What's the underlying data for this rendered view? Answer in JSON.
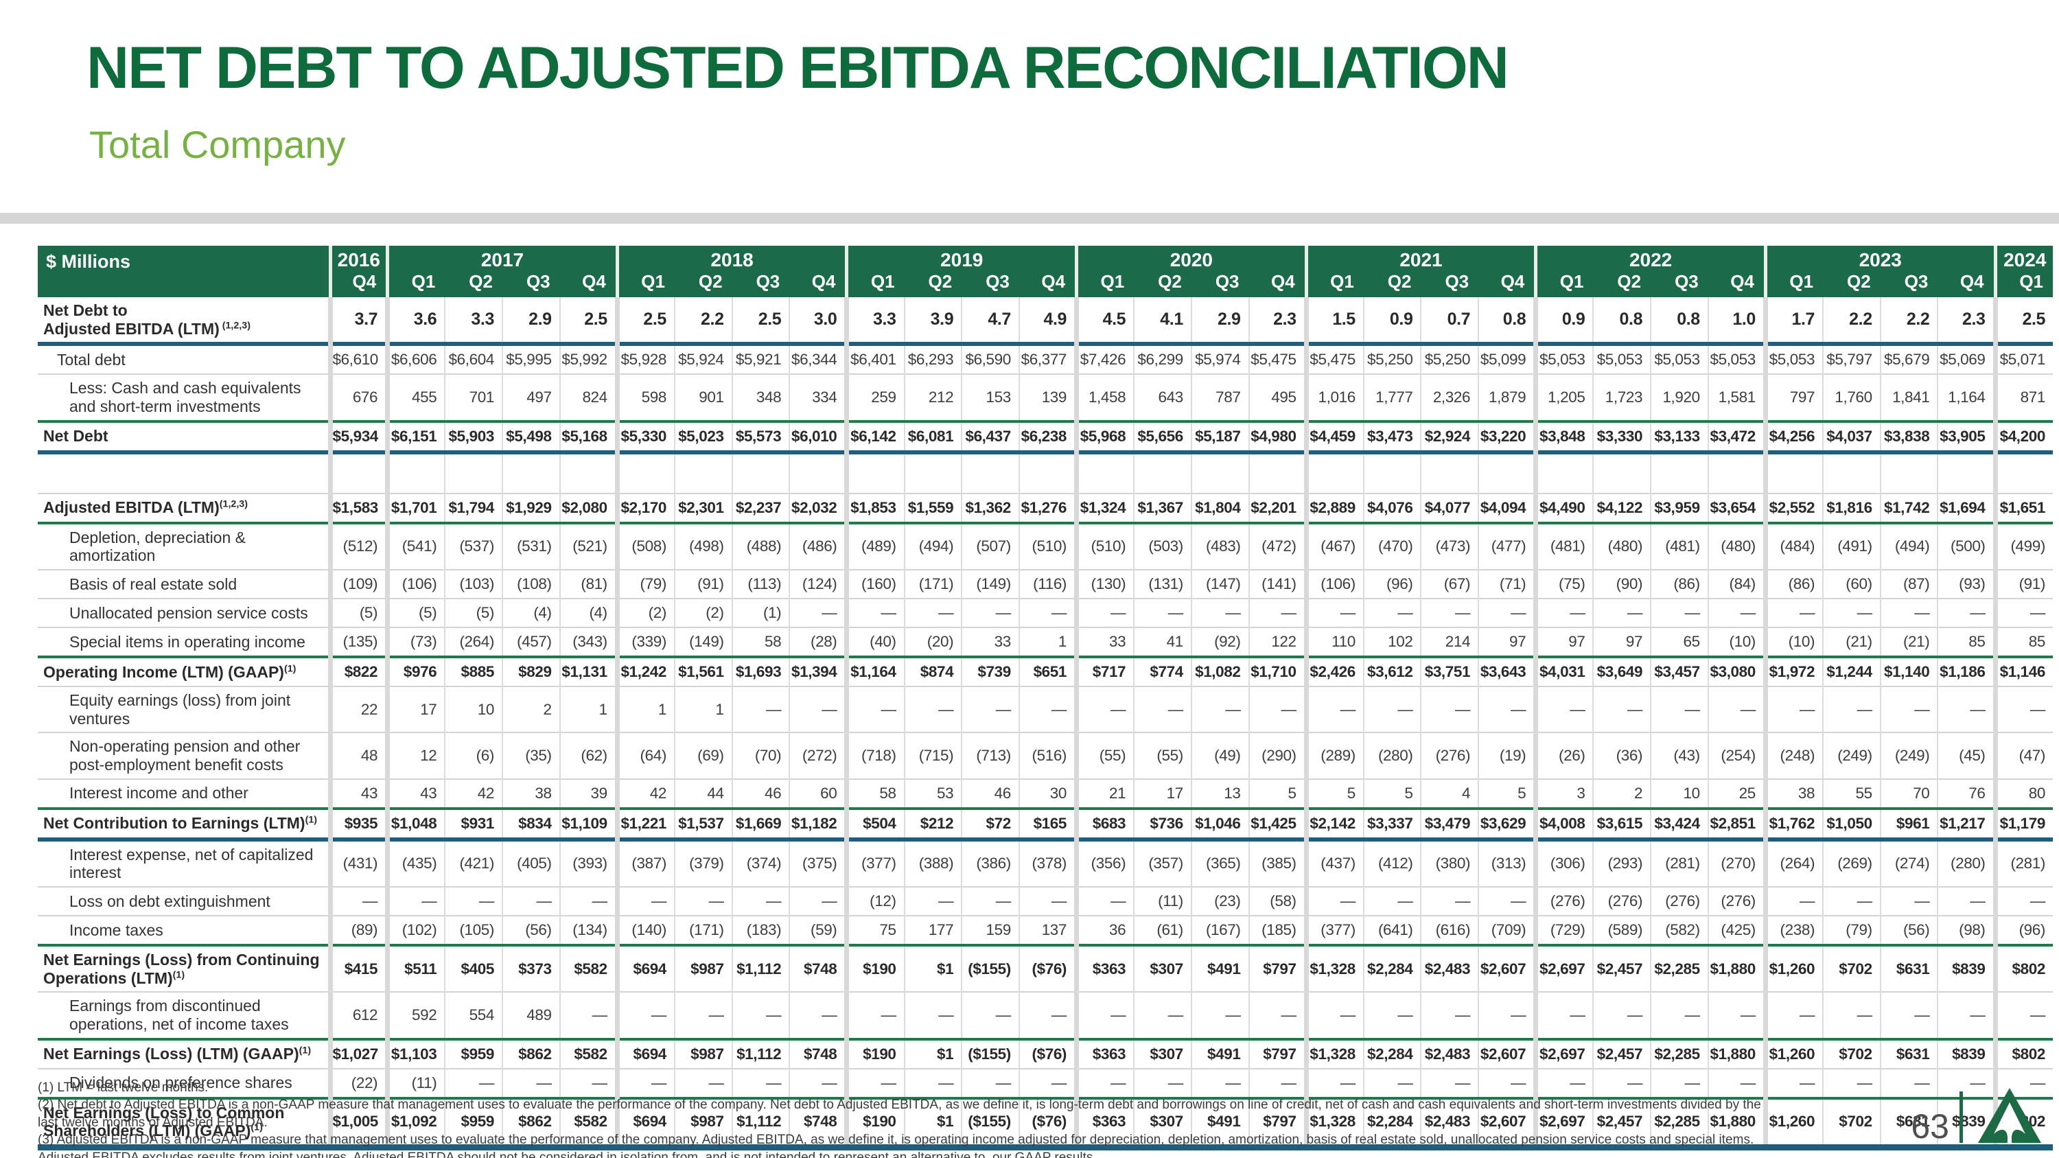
{
  "header": {
    "title": "NET DEBT TO ADJUSTED EBITDA RECONCILIATION",
    "subtitle": "Total Company"
  },
  "colors": {
    "brand_green_dark": "#0e6b3b",
    "brand_green_light": "#77b144",
    "header_green": "#1b6a4a",
    "rule_green": "#1e7a4b",
    "rule_blue": "#205e7d",
    "logo_green": "#1d6b45"
  },
  "table": {
    "unit_label": "$ Millions",
    "year_groups": [
      {
        "label": "2016",
        "quarters": [
          "Q4"
        ]
      },
      {
        "label": "2017",
        "quarters": [
          "Q1",
          "Q2",
          "Q3",
          "Q4"
        ]
      },
      {
        "label": "2018",
        "quarters": [
          "Q1",
          "Q2",
          "Q3",
          "Q4"
        ]
      },
      {
        "label": "2019",
        "quarters": [
          "Q1",
          "Q2",
          "Q3",
          "Q4"
        ]
      },
      {
        "label": "2020",
        "quarters": [
          "Q1",
          "Q2",
          "Q3",
          "Q4"
        ]
      },
      {
        "label": "2021",
        "quarters": [
          "Q1",
          "Q2",
          "Q3",
          "Q4"
        ]
      },
      {
        "label": "2022",
        "quarters": [
          "Q1",
          "Q2",
          "Q3",
          "Q4"
        ]
      },
      {
        "label": "2023",
        "quarters": [
          "Q1",
          "Q2",
          "Q3",
          "Q4"
        ]
      },
      {
        "label": "2024",
        "quarters": [
          "Q1"
        ]
      }
    ],
    "rows": [
      {
        "name": "row-net-debt-to-adjusted-ebitda",
        "label": "Net Debt to\nAdjusted EBITDA (LTM)",
        "sup": " (1,2,3)",
        "bold": true,
        "ratio": true,
        "rule": "blue",
        "values": [
          "3.7",
          "3.6",
          "3.3",
          "2.9",
          "2.5",
          "2.5",
          "2.2",
          "2.5",
          "3.0",
          "3.3",
          "3.9",
          "4.7",
          "4.9",
          "4.5",
          "4.1",
          "2.9",
          "2.3",
          "1.5",
          "0.9",
          "0.7",
          "0.8",
          "0.9",
          "0.8",
          "0.8",
          "1.0",
          "1.7",
          "2.2",
          "2.2",
          "2.3",
          "2.5"
        ]
      },
      {
        "name": "row-total-debt",
        "label": "Total debt",
        "indent": 1,
        "rule": "thin",
        "values": [
          "$6,610",
          "$6,606",
          "$6,604",
          "$5,995",
          "$5,992",
          "$5,928",
          "$5,924",
          "$5,921",
          "$6,344",
          "$6,401",
          "$6,293",
          "$6,590",
          "$6,377",
          "$7,426",
          "$6,299",
          "$5,974",
          "$5,475",
          "$5,475",
          "$5,250",
          "$5,250",
          "$5,099",
          "$5,053",
          "$5,053",
          "$5,053",
          "$5,053",
          "$5,053",
          "$5,797",
          "$5,679",
          "$5,069",
          "$5,071"
        ]
      },
      {
        "name": "row-less-cash",
        "label": "Less: Cash and cash equivalents\nand short-term investments",
        "indent": 2,
        "rule": "green",
        "values": [
          "676",
          "455",
          "701",
          "497",
          "824",
          "598",
          "901",
          "348",
          "334",
          "259",
          "212",
          "153",
          "139",
          "1,458",
          "643",
          "787",
          "495",
          "1,016",
          "1,777",
          "2,326",
          "1,879",
          "1,205",
          "1,723",
          "1,920",
          "1,581",
          "797",
          "1,760",
          "1,841",
          "1,164",
          "871"
        ]
      },
      {
        "name": "row-net-debt",
        "label": "Net Debt",
        "bold": true,
        "rule": "blue",
        "values": [
          "$5,934",
          "$6,151",
          "$5,903",
          "$5,498",
          "$5,168",
          "$5,330",
          "$5,023",
          "$5,573",
          "$6,010",
          "$6,142",
          "$6,081",
          "$6,437",
          "$6,238",
          "$5,968",
          "$5,656",
          "$5,187",
          "$4,980",
          "$4,459",
          "$3,473",
          "$2,924",
          "$3,220",
          "$3,848",
          "$3,330",
          "$3,133",
          "$3,472",
          "$4,256",
          "$4,037",
          "$3,838",
          "$3,905",
          "$4,200"
        ]
      },
      {
        "name": "row-spacer",
        "type": "spacer",
        "rule": "thin"
      },
      {
        "name": "row-adjusted-ebitda",
        "label": "Adjusted EBITDA (LTM)",
        "sup": "(1,2,3)",
        "bold": true,
        "rule": "green",
        "values": [
          "$1,583",
          "$1,701",
          "$1,794",
          "$1,929",
          "$2,080",
          "$2,170",
          "$2,301",
          "$2,237",
          "$2,032",
          "$1,853",
          "$1,559",
          "$1,362",
          "$1,276",
          "$1,324",
          "$1,367",
          "$1,804",
          "$2,201",
          "$2,889",
          "$4,076",
          "$4,077",
          "$4,094",
          "$4,490",
          "$4,122",
          "$3,959",
          "$3,654",
          "$2,552",
          "$1,816",
          "$1,742",
          "$1,694",
          "$1,651"
        ]
      },
      {
        "name": "row-depletion-depreciation-amortization",
        "label": "Depletion, depreciation &\namortization",
        "indent": 2,
        "rule": "thin",
        "values": [
          "(512)",
          "(541)",
          "(537)",
          "(531)",
          "(521)",
          "(508)",
          "(498)",
          "(488)",
          "(486)",
          "(489)",
          "(494)",
          "(507)",
          "(510)",
          "(510)",
          "(503)",
          "(483)",
          "(472)",
          "(467)",
          "(470)",
          "(473)",
          "(477)",
          "(481)",
          "(480)",
          "(481)",
          "(480)",
          "(484)",
          "(491)",
          "(494)",
          "(500)",
          "(499)"
        ]
      },
      {
        "name": "row-basis-of-real-estate-sold",
        "label": "Basis of real estate sold",
        "indent": 2,
        "rule": "thin",
        "values": [
          "(109)",
          "(106)",
          "(103)",
          "(108)",
          "(81)",
          "(79)",
          "(91)",
          "(113)",
          "(124)",
          "(160)",
          "(171)",
          "(149)",
          "(116)",
          "(130)",
          "(131)",
          "(147)",
          "(141)",
          "(106)",
          "(96)",
          "(67)",
          "(71)",
          "(75)",
          "(90)",
          "(86)",
          "(84)",
          "(86)",
          "(60)",
          "(87)",
          "(93)",
          "(91)"
        ]
      },
      {
        "name": "row-unallocated-pension-service-costs",
        "label": "Unallocated pension service costs",
        "indent": 2,
        "rule": "thin",
        "values": [
          "(5)",
          "(5)",
          "(5)",
          "(4)",
          "(4)",
          "(2)",
          "(2)",
          "(1)",
          "—",
          "—",
          "—",
          "—",
          "—",
          "—",
          "—",
          "—",
          "—",
          "—",
          "—",
          "—",
          "—",
          "—",
          "—",
          "—",
          "—",
          "—",
          "—",
          "—",
          "—",
          "—"
        ]
      },
      {
        "name": "row-special-items-in-operating-income",
        "label": "Special items in operating income",
        "indent": 2,
        "rule": "green",
        "values": [
          "(135)",
          "(73)",
          "(264)",
          "(457)",
          "(343)",
          "(339)",
          "(149)",
          "58",
          "(28)",
          "(40)",
          "(20)",
          "33",
          "1",
          "33",
          "41",
          "(92)",
          "122",
          "110",
          "102",
          "214",
          "97",
          "97",
          "97",
          "65",
          "(10)",
          "(10)",
          "(21)",
          "(21)",
          "85",
          "85"
        ]
      },
      {
        "name": "row-operating-income",
        "label": "Operating Income (LTM) (GAAP)",
        "sup": "(1)",
        "bold": true,
        "rule": "thin",
        "values": [
          "$822",
          "$976",
          "$885",
          "$829",
          "$1,131",
          "$1,242",
          "$1,561",
          "$1,693",
          "$1,394",
          "$1,164",
          "$874",
          "$739",
          "$651",
          "$717",
          "$774",
          "$1,082",
          "$1,710",
          "$2,426",
          "$3,612",
          "$3,751",
          "$3,643",
          "$4,031",
          "$3,649",
          "$3,457",
          "$3,080",
          "$1,972",
          "$1,244",
          "$1,140",
          "$1,186",
          "$1,146"
        ]
      },
      {
        "name": "row-equity-earnings-joint-ventures",
        "label": "Equity earnings (loss) from joint\nventures",
        "indent": 2,
        "rule": "thin",
        "values": [
          "22",
          "17",
          "10",
          "2",
          "1",
          "1",
          "1",
          "—",
          "—",
          "—",
          "—",
          "—",
          "—",
          "—",
          "—",
          "—",
          "—",
          "—",
          "—",
          "—",
          "—",
          "—",
          "—",
          "—",
          "—",
          "—",
          "—",
          "—",
          "—",
          "—"
        ]
      },
      {
        "name": "row-non-operating-pension",
        "label": "Non-operating pension and other\npost-employment benefit costs",
        "indent": 2,
        "rule": "thin",
        "values": [
          "48",
          "12",
          "(6)",
          "(35)",
          "(62)",
          "(64)",
          "(69)",
          "(70)",
          "(272)",
          "(718)",
          "(715)",
          "(713)",
          "(516)",
          "(55)",
          "(55)",
          "(49)",
          "(290)",
          "(289)",
          "(280)",
          "(276)",
          "(19)",
          "(26)",
          "(36)",
          "(43)",
          "(254)",
          "(248)",
          "(249)",
          "(249)",
          "(45)",
          "(47)"
        ]
      },
      {
        "name": "row-interest-income-and-other",
        "label": "Interest income and other",
        "indent": 2,
        "rule": "green",
        "values": [
          "43",
          "43",
          "42",
          "38",
          "39",
          "42",
          "44",
          "46",
          "60",
          "58",
          "53",
          "46",
          "30",
          "21",
          "17",
          "13",
          "5",
          "5",
          "5",
          "4",
          "5",
          "3",
          "2",
          "10",
          "25",
          "38",
          "55",
          "70",
          "76",
          "80"
        ]
      },
      {
        "name": "row-net-contribution-to-earnings",
        "label": "Net Contribution to Earnings (LTM)",
        "sup": "(1)",
        "bold": true,
        "rule": "blue",
        "values": [
          "$935",
          "$1,048",
          "$931",
          "$834",
          "$1,109",
          "$1,221",
          "$1,537",
          "$1,669",
          "$1,182",
          "$504",
          "$212",
          "$72",
          "$165",
          "$683",
          "$736",
          "$1,046",
          "$1,425",
          "$2,142",
          "$3,337",
          "$3,479",
          "$3,629",
          "$4,008",
          "$3,615",
          "$3,424",
          "$2,851",
          "$1,762",
          "$1,050",
          "$961",
          "$1,217",
          "$1,179"
        ]
      },
      {
        "name": "row-interest-expense",
        "label": "Interest expense, net of capitalized\ninterest",
        "indent": 2,
        "rule": "thin",
        "values": [
          "(431)",
          "(435)",
          "(421)",
          "(405)",
          "(393)",
          "(387)",
          "(379)",
          "(374)",
          "(375)",
          "(377)",
          "(388)",
          "(386)",
          "(378)",
          "(356)",
          "(357)",
          "(365)",
          "(385)",
          "(437)",
          "(412)",
          "(380)",
          "(313)",
          "(306)",
          "(293)",
          "(281)",
          "(270)",
          "(264)",
          "(269)",
          "(274)",
          "(280)",
          "(281)"
        ]
      },
      {
        "name": "row-loss-on-debt-extinguishment",
        "label": "Loss on debt extinguishment",
        "indent": 2,
        "rule": "thin",
        "values": [
          "—",
          "—",
          "—",
          "—",
          "—",
          "—",
          "—",
          "—",
          "—",
          "(12)",
          "—",
          "—",
          "—",
          "—",
          "(11)",
          "(23)",
          "(58)",
          "—",
          "—",
          "—",
          "—",
          "(276)",
          "(276)",
          "(276)",
          "(276)",
          "—",
          "—",
          "—",
          "—",
          "—"
        ]
      },
      {
        "name": "row-income-taxes",
        "label": "Income taxes",
        "indent": 2,
        "rule": "green",
        "values": [
          "(89)",
          "(102)",
          "(105)",
          "(56)",
          "(134)",
          "(140)",
          "(171)",
          "(183)",
          "(59)",
          "75",
          "177",
          "159",
          "137",
          "36",
          "(61)",
          "(167)",
          "(185)",
          "(377)",
          "(641)",
          "(616)",
          "(709)",
          "(729)",
          "(589)",
          "(582)",
          "(425)",
          "(238)",
          "(79)",
          "(56)",
          "(98)",
          "(96)"
        ]
      },
      {
        "name": "row-net-earnings-continuing-operations",
        "label": "Net Earnings (Loss) from Continuing\nOperations (LTM)",
        "sup": "(1)",
        "bold": true,
        "rule": "thin",
        "values": [
          "$415",
          "$511",
          "$405",
          "$373",
          "$582",
          "$694",
          "$987",
          "$1,112",
          "$748",
          "$190",
          "$1",
          "($155)",
          "($76)",
          "$363",
          "$307",
          "$491",
          "$797",
          "$1,328",
          "$2,284",
          "$2,483",
          "$2,607",
          "$2,697",
          "$2,457",
          "$2,285",
          "$1,880",
          "$1,260",
          "$702",
          "$631",
          "$839",
          "$802"
        ]
      },
      {
        "name": "row-earnings-discontinued-operations",
        "label": "Earnings from discontinued\noperations, net of income taxes",
        "indent": 2,
        "rule": "green",
        "values": [
          "612",
          "592",
          "554",
          "489",
          "—",
          "—",
          "—",
          "—",
          "—",
          "—",
          "—",
          "—",
          "—",
          "—",
          "—",
          "—",
          "—",
          "—",
          "—",
          "—",
          "—",
          "—",
          "—",
          "—",
          "—",
          "—",
          "—",
          "—",
          "—",
          "—"
        ]
      },
      {
        "name": "row-net-earnings-gaap",
        "label": "Net Earnings (Loss) (LTM) (GAAP)",
        "sup": "(1)",
        "bold": true,
        "rule": "thin",
        "values": [
          "$1,027",
          "$1,103",
          "$959",
          "$862",
          "$582",
          "$694",
          "$987",
          "$1,112",
          "$748",
          "$190",
          "$1",
          "($155)",
          "($76)",
          "$363",
          "$307",
          "$491",
          "$797",
          "$1,328",
          "$2,284",
          "$2,483",
          "$2,607",
          "$2,697",
          "$2,457",
          "$2,285",
          "$1,880",
          "$1,260",
          "$702",
          "$631",
          "$839",
          "$802"
        ]
      },
      {
        "name": "row-dividends-on-preference-shares",
        "label": "Dividends on preference shares",
        "indent": 2,
        "rule": "green",
        "values": [
          "(22)",
          "(11)",
          "—",
          "—",
          "—",
          "—",
          "—",
          "—",
          "—",
          "—",
          "—",
          "—",
          "—",
          "—",
          "—",
          "—",
          "—",
          "—",
          "—",
          "—",
          "—",
          "—",
          "—",
          "—",
          "—",
          "—",
          "—",
          "—",
          "—",
          "—"
        ]
      },
      {
        "name": "row-net-earnings-to-common-shareholders",
        "label": "Net Earnings (Loss) to Common\nShareholders (LTM) (GAAP)",
        "sup": "(1)",
        "bold": true,
        "rule": "blue-thick",
        "values": [
          "$1,005",
          "$1,092",
          "$959",
          "$862",
          "$582",
          "$694",
          "$987",
          "$1,112",
          "$748",
          "$190",
          "$1",
          "($155)",
          "($76)",
          "$363",
          "$307",
          "$491",
          "$797",
          "$1,328",
          "$2,284",
          "$2,483",
          "$2,607",
          "$2,697",
          "$2,457",
          "$2,285",
          "$1,880",
          "$1,260",
          "$702",
          "$631",
          "$839",
          "$802"
        ]
      }
    ]
  },
  "footnotes": [
    "(1) LTM = last twelve months.",
    "(2) Net debt to Adjusted EBITDA is a non-GAAP measure that management uses to evaluate the performance of the company. Net debt to Adjusted EBITDA, as we define it, is long-term debt and borrowings on line of credit, net of cash and cash equivalents and short-term investments divided by the",
    "last twelve months of Adjusted EBITDA.",
    "(3) Adjusted EBITDA is a non-GAAP measure that management uses to evaluate the performance of the company. Adjusted EBITDA, as we define it, is operating income adjusted for depreciation, depletion, amortization, basis of real estate sold, unallocated pension service costs and special items.",
    "Adjusted EBITDA excludes results from joint ventures. Adjusted EBITDA should not be considered in isolation from, and is not intended to represent an alternative to, our GAAP results."
  ],
  "page_number": "63"
}
